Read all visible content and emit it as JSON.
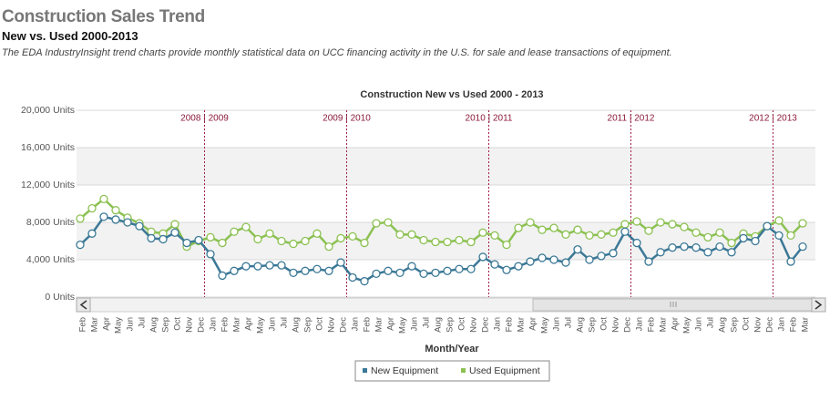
{
  "header": {
    "title": "Construction Sales Trend",
    "subtitle": "New vs. Used 2000-2013",
    "description": "The EDA IndustryInsight trend charts provide monthly statistical data on UCC financing activity in the U.S. for sale and lease transactions of equipment."
  },
  "chart_data": {
    "type": "line",
    "title": "Construction New vs Used 2000 - 2013",
    "x_label": "Month/Year",
    "categories": [
      "Feb",
      "Mar",
      "Apr",
      "May",
      "Jun",
      "Jul",
      "Aug",
      "Sep",
      "Oct",
      "Nov",
      "Dec",
      "Jan",
      "Feb",
      "Mar",
      "Apr",
      "May",
      "Jun",
      "Jul",
      "Aug",
      "Sep",
      "Oct",
      "Nov",
      "Dec",
      "Jan",
      "Feb",
      "Mar",
      "Apr",
      "May",
      "Jun",
      "Jul",
      "Aug",
      "Sep",
      "Oct",
      "Nov",
      "Dec",
      "Jan",
      "Feb",
      "Mar",
      "Apr",
      "May",
      "Jun",
      "Jul",
      "Aug",
      "Sep",
      "Oct",
      "Nov",
      "Dec",
      "Jan",
      "Feb",
      "Mar",
      "Apr",
      "May",
      "Jun",
      "Jul",
      "Aug",
      "Sep",
      "Oct",
      "Nov",
      "Dec",
      "Jan",
      "Feb",
      "Mar"
    ],
    "year_markers": [
      "2008 | 2009",
      "2009 | 2010",
      "2010 | 2011",
      "2011 | 2012",
      "2012 | 2013"
    ],
    "series": [
      {
        "name": "New Equipment",
        "color": "#3b7896",
        "values": [
          5600,
          6800,
          8600,
          8300,
          8000,
          7600,
          6300,
          6200,
          6900,
          5800,
          6100,
          4600,
          2300,
          2800,
          3300,
          3300,
          3400,
          3400,
          2600,
          2800,
          3000,
          2800,
          3700,
          2100,
          1700,
          2500,
          2800,
          2600,
          3300,
          2500,
          2600,
          2800,
          3000,
          3000,
          4300,
          3500,
          2900,
          3300,
          3800,
          4200,
          4000,
          3700,
          5100,
          4000,
          4400,
          4700,
          7000,
          5800,
          3800,
          4800,
          5300,
          5400,
          5300,
          4800,
          5400,
          4800,
          6300,
          6000,
          7600,
          6600,
          3800,
          5400
        ]
      },
      {
        "name": "Used Equipment",
        "color": "#8cc152",
        "values": [
          8400,
          9500,
          10500,
          9300,
          8500,
          7900,
          7000,
          6800,
          7800,
          5400,
          6000,
          6400,
          5800,
          7000,
          7500,
          6200,
          6800,
          6000,
          5700,
          6000,
          6800,
          5400,
          6300,
          6500,
          5800,
          7900,
          8000,
          6700,
          6700,
          6100,
          5900,
          5900,
          6100,
          5900,
          6900,
          6600,
          5600,
          7400,
          8000,
          7200,
          7400,
          6700,
          7200,
          6600,
          6700,
          6900,
          7800,
          8100,
          7100,
          8000,
          7800,
          7500,
          6900,
          6400,
          6900,
          5800,
          6800,
          6500,
          7600,
          8200,
          6600,
          7900
        ]
      }
    ],
    "ylim": [
      0,
      20000
    ],
    "yticks": [
      {
        "value": 0,
        "label": "0 Units"
      },
      {
        "value": 4000,
        "label": "4,000 Units"
      },
      {
        "value": 8000,
        "label": "8,000 Units"
      },
      {
        "value": 12000,
        "label": "12,000 Units"
      },
      {
        "value": 16000,
        "label": "16,000 Units"
      },
      {
        "value": 20000,
        "label": "20,000 Units"
      }
    ],
    "grid": true,
    "legend": "bottom"
  }
}
